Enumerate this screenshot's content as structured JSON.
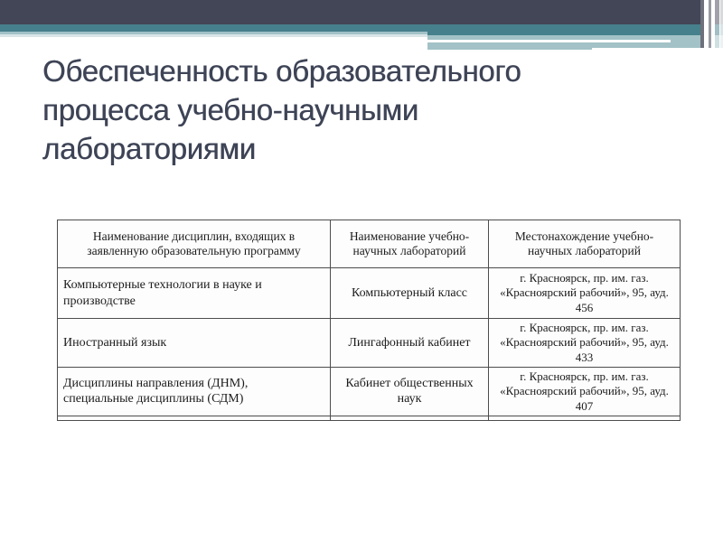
{
  "slide": {
    "title_lines": [
      "Обеспеченность образовательного",
      "процесса учебно-научными",
      "лабораториями"
    ]
  },
  "table": {
    "columns": [
      "Наименование дисциплин, входящих в заявленную образовательную программу",
      "Наименование учебно-научных лабораторий",
      "Местонахождение учебно-научных лабораторий"
    ],
    "rows": [
      {
        "discipline": "Компьютерные технологии в науке и производстве",
        "lab": "Компьютерный класс",
        "location": "г. Красноярск, пр. им. газ. «Красноярский рабочий», 95, ауд. 456"
      },
      {
        "discipline": "Иностранный язык",
        "lab": "Лингафонный кабинет",
        "location": "г. Красноярск, пр. им. газ. «Красноярский рабочий», 95, ауд. 433"
      },
      {
        "discipline": "Дисциплины направления (ДНМ), специальные дисциплины (СДМ)",
        "lab": "Кабинет общественных наук",
        "location": "г. Красноярск, пр. им. газ. «Красноярский рабочий», 95, ауд. 407"
      }
    ]
  },
  "theme": {
    "colors": {
      "dark-band": "#434657",
      "teal-band": "#46808C",
      "light-band": "#A2C2C7",
      "pale-band": "#D9E5E7",
      "pinstripe-dark": "#6E707B",
      "pinstripe-light": "#989AA1",
      "title": "#3E4456",
      "table-border": "#4D4D4D",
      "table-text": "#1C1C1C"
    }
  }
}
